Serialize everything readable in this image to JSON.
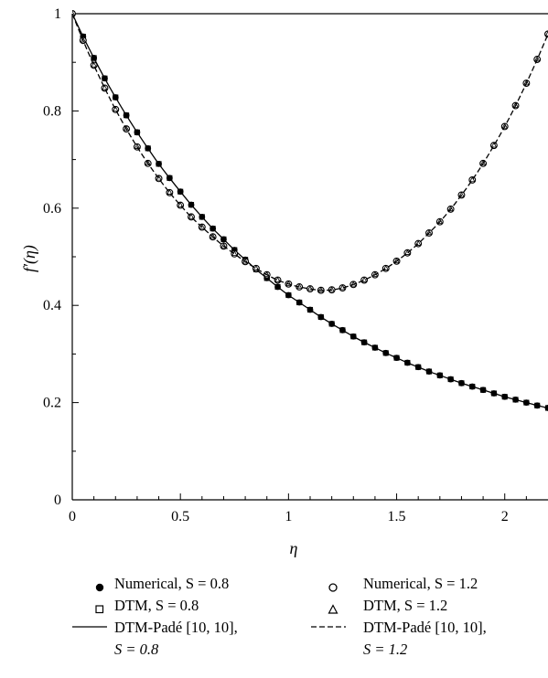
{
  "chart_data": {
    "type": "line",
    "xlabel": "η",
    "ylabel": "f′(η)",
    "xlim": [
      0,
      2.2
    ],
    "ylim": [
      0,
      1
    ],
    "xticks": [
      "0",
      "0.5",
      "1",
      "1.5",
      "2"
    ],
    "yticks": [
      "0",
      "0.2",
      "0.4",
      "0.6",
      "0.8",
      "1"
    ],
    "grid": false,
    "legend_placement": "bottom",
    "series": [
      {
        "name": "Numerical, S = 0.8",
        "style": "marker-filled-circle",
        "x": [
          0.0,
          0.05,
          0.1,
          0.15,
          0.2,
          0.25,
          0.3,
          0.35,
          0.4,
          0.45,
          0.5,
          0.55,
          0.6,
          0.65,
          0.7,
          0.75,
          0.8,
          0.85,
          0.9,
          0.95,
          1.0,
          1.05,
          1.1,
          1.15,
          1.2,
          1.25,
          1.3,
          1.35,
          1.4,
          1.45,
          1.5,
          1.55,
          1.6,
          1.65,
          1.7,
          1.75,
          1.8,
          1.85,
          1.9,
          1.95,
          2.0,
          2.05,
          2.1,
          2.15,
          2.2
        ],
        "y": [
          1.0,
          0.953,
          0.909,
          0.867,
          0.828,
          0.791,
          0.756,
          0.723,
          0.691,
          0.662,
          0.634,
          0.607,
          0.582,
          0.558,
          0.536,
          0.514,
          0.494,
          0.474,
          0.456,
          0.438,
          0.421,
          0.406,
          0.391,
          0.376,
          0.362,
          0.349,
          0.336,
          0.324,
          0.313,
          0.302,
          0.292,
          0.282,
          0.273,
          0.264,
          0.256,
          0.248,
          0.24,
          0.233,
          0.226,
          0.219,
          0.212,
          0.206,
          0.2,
          0.194,
          0.189
        ]
      },
      {
        "name": "DTM, S = 0.8",
        "style": "marker-open-square",
        "x": [
          0.0,
          0.05,
          0.1,
          0.15,
          0.2,
          0.25,
          0.3,
          0.35,
          0.4,
          0.45,
          0.5,
          0.55,
          0.6,
          0.65,
          0.7,
          0.75,
          0.8,
          0.85,
          0.9,
          0.95,
          1.0,
          1.05,
          1.1,
          1.15,
          1.2,
          1.25,
          1.3,
          1.35,
          1.4,
          1.45,
          1.5,
          1.55,
          1.6,
          1.65,
          1.7,
          1.75,
          1.8,
          1.85,
          1.9,
          1.95,
          2.0,
          2.05,
          2.1,
          2.15,
          2.2
        ],
        "y": [
          1.0,
          0.953,
          0.909,
          0.867,
          0.828,
          0.791,
          0.756,
          0.723,
          0.691,
          0.662,
          0.634,
          0.607,
          0.582,
          0.558,
          0.536,
          0.514,
          0.494,
          0.474,
          0.456,
          0.438,
          0.421,
          0.406,
          0.391,
          0.376,
          0.362,
          0.349,
          0.336,
          0.324,
          0.313,
          0.302,
          0.292,
          0.282,
          0.273,
          0.264,
          0.256,
          0.248,
          0.24,
          0.233,
          0.226,
          0.219,
          0.212,
          0.206,
          0.2,
          0.194,
          0.189
        ]
      },
      {
        "name": "DTM-Padé [10, 10], S = 0.8",
        "style": "line-solid",
        "x": [
          0.0,
          0.05,
          0.1,
          0.15,
          0.2,
          0.25,
          0.3,
          0.35,
          0.4,
          0.45,
          0.5,
          0.55,
          0.6,
          0.65,
          0.7,
          0.75,
          0.8,
          0.85,
          0.9,
          0.95,
          1.0,
          1.05,
          1.1,
          1.15,
          1.2,
          1.25,
          1.3,
          1.35,
          1.4,
          1.45,
          1.5,
          1.55,
          1.6,
          1.65,
          1.7,
          1.75,
          1.8,
          1.85,
          1.9,
          1.95,
          2.0,
          2.05,
          2.1,
          2.15,
          2.2
        ],
        "y": [
          1.0,
          0.953,
          0.909,
          0.867,
          0.828,
          0.791,
          0.756,
          0.723,
          0.691,
          0.662,
          0.634,
          0.607,
          0.582,
          0.558,
          0.536,
          0.514,
          0.494,
          0.474,
          0.456,
          0.438,
          0.421,
          0.406,
          0.391,
          0.376,
          0.362,
          0.349,
          0.336,
          0.324,
          0.313,
          0.302,
          0.292,
          0.282,
          0.273,
          0.264,
          0.256,
          0.248,
          0.24,
          0.233,
          0.226,
          0.219,
          0.212,
          0.206,
          0.2,
          0.194,
          0.189
        ]
      },
      {
        "name": "Numerical, S = 1.2",
        "style": "marker-open-circle",
        "x": [
          0.0,
          0.05,
          0.1,
          0.15,
          0.2,
          0.25,
          0.3,
          0.35,
          0.4,
          0.45,
          0.5,
          0.55,
          0.6,
          0.65,
          0.7,
          0.75,
          0.8,
          0.85,
          0.9,
          0.95,
          1.0,
          1.05,
          1.1,
          1.15,
          1.2,
          1.25,
          1.3,
          1.35,
          1.4,
          1.45,
          1.5,
          1.55,
          1.6,
          1.65,
          1.7,
          1.75,
          1.8,
          1.85,
          1.9,
          1.95,
          2.0,
          2.05,
          2.1,
          2.15,
          2.2
        ],
        "y": [
          1.0,
          0.945,
          0.894,
          0.847,
          0.803,
          0.763,
          0.726,
          0.692,
          0.661,
          0.632,
          0.606,
          0.582,
          0.561,
          0.541,
          0.522,
          0.506,
          0.49,
          0.476,
          0.463,
          0.452,
          0.444,
          0.438,
          0.434,
          0.431,
          0.432,
          0.436,
          0.443,
          0.452,
          0.463,
          0.476,
          0.491,
          0.508,
          0.527,
          0.549,
          0.572,
          0.598,
          0.627,
          0.658,
          0.692,
          0.729,
          0.768,
          0.811,
          0.857,
          0.906,
          0.958
        ]
      },
      {
        "name": "DTM, S = 1.2",
        "style": "marker-open-triangle",
        "x": [
          0.0,
          0.05,
          0.1,
          0.15,
          0.2,
          0.25,
          0.3,
          0.35,
          0.4,
          0.45,
          0.5,
          0.55,
          0.6,
          0.65,
          0.7,
          0.75,
          0.8,
          0.85,
          0.9,
          0.95,
          1.0,
          1.05,
          1.1,
          1.15,
          1.2,
          1.25,
          1.3,
          1.35,
          1.4,
          1.45,
          1.5,
          1.55,
          1.6,
          1.65,
          1.7,
          1.75,
          1.8,
          1.85,
          1.9,
          1.95,
          2.0,
          2.05,
          2.1,
          2.15,
          2.2
        ],
        "y": [
          1.0,
          0.945,
          0.894,
          0.847,
          0.803,
          0.763,
          0.726,
          0.692,
          0.661,
          0.632,
          0.606,
          0.582,
          0.561,
          0.541,
          0.522,
          0.506,
          0.49,
          0.476,
          0.463,
          0.452,
          0.444,
          0.438,
          0.434,
          0.431,
          0.432,
          0.436,
          0.443,
          0.452,
          0.463,
          0.476,
          0.491,
          0.508,
          0.527,
          0.549,
          0.572,
          0.598,
          0.627,
          0.658,
          0.692,
          0.729,
          0.768,
          0.811,
          0.857,
          0.906,
          0.958
        ]
      },
      {
        "name": "DTM-Padé [10, 10], S = 1.2",
        "style": "line-dashed",
        "x": [
          0.0,
          0.05,
          0.1,
          0.15,
          0.2,
          0.25,
          0.3,
          0.35,
          0.4,
          0.45,
          0.5,
          0.55,
          0.6,
          0.65,
          0.7,
          0.75,
          0.8,
          0.85,
          0.9,
          0.95,
          1.0,
          1.05,
          1.1,
          1.15,
          1.2,
          1.25,
          1.3,
          1.35,
          1.4,
          1.45,
          1.5,
          1.55,
          1.6,
          1.65,
          1.7,
          1.75,
          1.8,
          1.85,
          1.9,
          1.95,
          2.0,
          2.05,
          2.1,
          2.15,
          2.2
        ],
        "y": [
          1.0,
          0.945,
          0.894,
          0.847,
          0.803,
          0.763,
          0.726,
          0.692,
          0.661,
          0.632,
          0.606,
          0.582,
          0.561,
          0.541,
          0.522,
          0.506,
          0.49,
          0.476,
          0.463,
          0.452,
          0.444,
          0.438,
          0.434,
          0.431,
          0.432,
          0.436,
          0.443,
          0.452,
          0.463,
          0.476,
          0.491,
          0.508,
          0.527,
          0.549,
          0.572,
          0.598,
          0.627,
          0.658,
          0.692,
          0.729,
          0.768,
          0.811,
          0.857,
          0.906,
          0.958
        ]
      }
    ]
  },
  "legend": {
    "items": [
      {
        "key": "numerical_08",
        "line1": "Numerical, S = 0.8",
        "line2": ""
      },
      {
        "key": "numerical_12",
        "line1": "Numerical, S = 1.2",
        "line2": ""
      },
      {
        "key": "dtm_08",
        "line1": "DTM, S = 0.8",
        "line2": ""
      },
      {
        "key": "dtm_12",
        "line1": "DTM, S = 1.2",
        "line2": ""
      },
      {
        "key": "pade_08",
        "line1": "DTM-Padé [10, 10],",
        "line2": "S = 0.8"
      },
      {
        "key": "pade_12",
        "line1": "DTM-Padé [10, 10],",
        "line2": "S = 1.2"
      }
    ]
  }
}
